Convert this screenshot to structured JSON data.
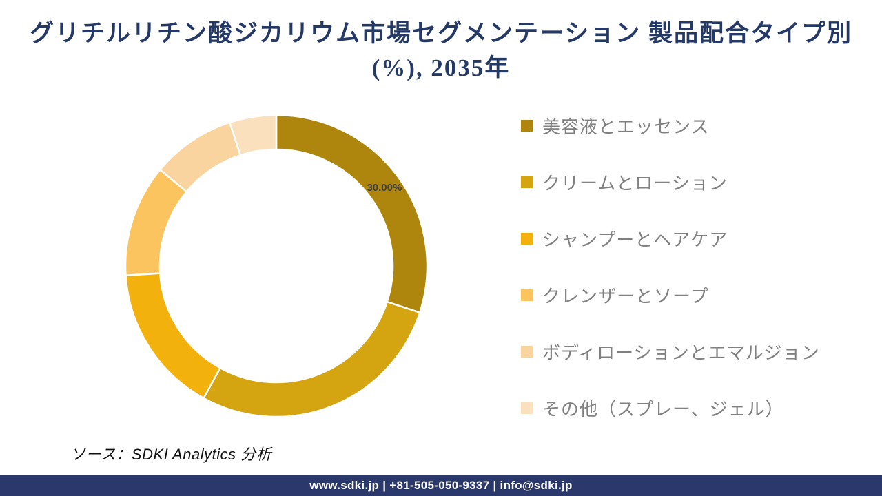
{
  "title": {
    "line1": "グリチルリチン酸ジカリウム市場セグメンテーション 製品配合タイプ別",
    "line2": "(%), 2035年"
  },
  "chart_data": {
    "type": "pie",
    "subtype": "donut",
    "title": "グリチルリチン酸ジカリウム市場セグメンテーション 製品配合タイプ別 (%), 2035年",
    "unit": "%",
    "start_angle_deg": 0,
    "direction": "clockwise",
    "hole_ratio": 0.77,
    "legend_position": "right",
    "segments": [
      {
        "label": "美容液とエッセンス",
        "value": 30,
        "color": "#AF860D",
        "data_label": "30.00%"
      },
      {
        "label": "クリームとローション",
        "value": 28,
        "color": "#D5A511",
        "data_label": ""
      },
      {
        "label": "シャンプーとヘアケア",
        "value": 16,
        "color": "#F2B10D",
        "data_label": ""
      },
      {
        "label": "クレンザーとソープ",
        "value": 12,
        "color": "#FCC45F",
        "data_label": ""
      },
      {
        "label": "ボディローションとエマルジョン",
        "value": 9,
        "color": "#FAD49E",
        "data_label": ""
      },
      {
        "label": "その他（スプレー、ジェル）",
        "value": 5,
        "color": "#FBE0BD",
        "data_label": ""
      }
    ]
  },
  "source_note": "ソース：SDKI Analytics 分析",
  "footer": {
    "text": "www.sdki.jp | +81-505-050-9337 | info@sdki.jp"
  },
  "colors": {
    "title_text": "#253967",
    "legend_text": "#808080",
    "data_label_text": "#404040",
    "footer_background": "#2B386B",
    "segment_border": "#FFFFFF"
  }
}
